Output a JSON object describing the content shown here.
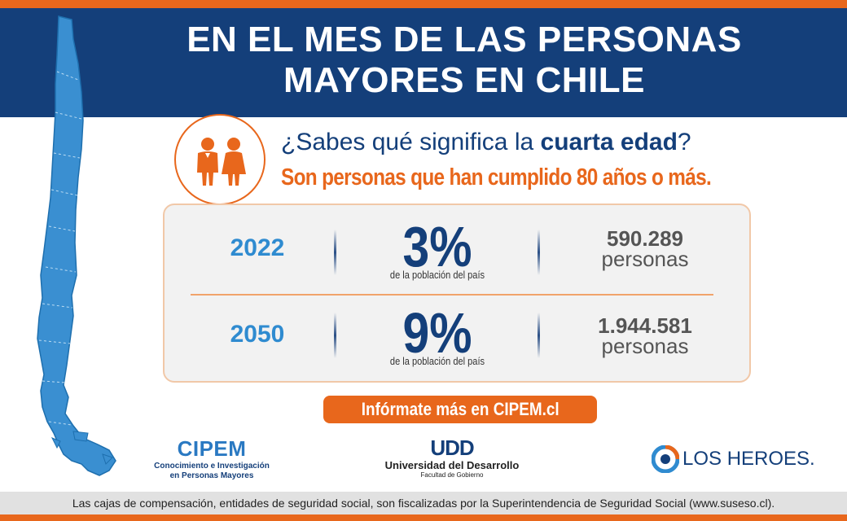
{
  "header": {
    "title_line1": "EN EL MES DE LAS PERSONAS",
    "title_line2": "MAYORES EN CHILE"
  },
  "question": {
    "prefix": "¿Sabes qué significa la ",
    "emphasis": "cuarta edad",
    "suffix": "?"
  },
  "answer": "Son personas que han cumplido 80 años o más.",
  "stats": [
    {
      "year": "2022",
      "percent": "3%",
      "caption": "de la población del país",
      "count": "590.289",
      "unit": "personas"
    },
    {
      "year": "2050",
      "percent": "9%",
      "caption": "de la población del país",
      "count": "1.944.581",
      "unit": "personas"
    }
  ],
  "cta": "Infórmate más en CIPEM.cl",
  "logos": {
    "cipem": {
      "name": "CIPEM",
      "line1": "Conocimiento e Investigación",
      "line2": "en Personas Mayores"
    },
    "udd": {
      "mark": "UDD",
      "name": "Universidad del Desarrollo",
      "sub": "Facultad de Gobierno"
    },
    "heroes": {
      "name": "LOS HEROES."
    }
  },
  "footer": "Las cajas de compensación, entidades de seguridad social, son fiscalizadas por la Superintendencia de Seguridad Social (www.suseso.cl).",
  "colors": {
    "orange": "#e8671c",
    "navy": "#143f7a",
    "light_blue": "#2f8bd0",
    "map_blue": "#3a8fd1"
  },
  "icons": [
    "chile-map-icon",
    "elderly-people-icon",
    "los-heroes-icon"
  ]
}
